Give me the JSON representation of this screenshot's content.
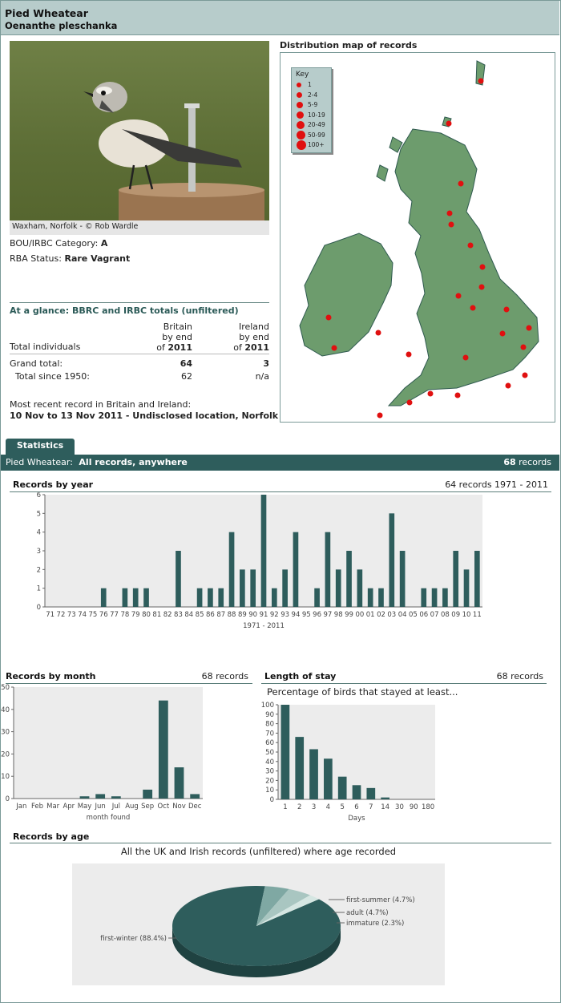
{
  "species": {
    "name": "Pied Wheatear",
    "latin": "Oenanthe pleschanka"
  },
  "photo": {
    "caption": "Waxham, Norfolk - © Rob Wardle"
  },
  "category": {
    "label": "BOU/IRBC Category:",
    "value": "A"
  },
  "rba": {
    "label": "RBA Status:",
    "value": "Rare Vagrant"
  },
  "glance": {
    "title": "At a glance: BBRC and IRBC totals (unfiltered)",
    "col_britain": [
      "Britain",
      "by end",
      "of "
    ],
    "col_ireland": [
      "Ireland",
      "by end",
      "of "
    ],
    "year": "2011",
    "total_individuals": "Total individuals",
    "grand_total_label": "Grand total:",
    "grand_britain": "64",
    "grand_ireland": "3",
    "since_label": "Total since 1950:",
    "since_britain": "62",
    "since_ireland": "n/a",
    "recent_label": "Most recent record in Britain and Ireland:",
    "recent_value": "10 Nov to 13 Nov 2011 - Undisclosed location, Norfolk"
  },
  "map": {
    "title": "Distribution map of records",
    "key_title": "Key",
    "key_items": [
      "1",
      "2-4",
      "5-9",
      "10-19",
      "20-49",
      "50-99",
      "100+"
    ],
    "dot_color": "#e01010",
    "land_color": "#6d9c6d",
    "sea_color": "#ffffff"
  },
  "stats": {
    "tab": "Statistics",
    "header_species": "Pied Wheatear:",
    "header_scope": "All records, anywhere",
    "header_count": "68",
    "header_count_suffix": " records"
  },
  "colors": {
    "accent": "#2e5d5c",
    "header_bg": "#b7cccb",
    "plot_bg": "#ececec"
  },
  "chart_data": [
    {
      "type": "bar",
      "title": "Records by year",
      "subtitle": "64 records 1971 - 2011",
      "xlabel": "1971 - 2011",
      "ylabel": "",
      "ylim": [
        0,
        6
      ],
      "categories": [
        "71",
        "72",
        "73",
        "74",
        "75",
        "76",
        "77",
        "78",
        "79",
        "80",
        "81",
        "82",
        "83",
        "84",
        "85",
        "86",
        "87",
        "88",
        "89",
        "90",
        "91",
        "92",
        "93",
        "94",
        "95",
        "96",
        "97",
        "98",
        "99",
        "00",
        "01",
        "02",
        "03",
        "04",
        "05",
        "06",
        "07",
        "08",
        "09",
        "10",
        "11"
      ],
      "values": [
        0,
        0,
        0,
        0,
        0,
        1,
        0,
        1,
        1,
        1,
        0,
        0,
        3,
        0,
        1,
        1,
        1,
        4,
        2,
        2,
        6,
        1,
        2,
        4,
        0,
        1,
        4,
        2,
        3,
        2,
        1,
        1,
        5,
        3,
        0,
        1,
        1,
        1,
        3,
        2,
        3
      ]
    },
    {
      "type": "bar",
      "title": "Records by month",
      "subtitle": "68 records",
      "xlabel": "month found",
      "ylabel": "",
      "ylim": [
        0,
        50
      ],
      "categories": [
        "Jan",
        "Feb",
        "Mar",
        "Apr",
        "May",
        "Jun",
        "Jul",
        "Aug",
        "Sep",
        "Oct",
        "Nov",
        "Dec"
      ],
      "values": [
        0,
        0,
        0,
        0,
        1,
        2,
        1,
        0,
        4,
        44,
        14,
        2
      ]
    },
    {
      "type": "bar",
      "title": "Length of stay",
      "subtitle": "68 records",
      "caption": "Percentage of birds that stayed at least...",
      "xlabel": "Days",
      "ylabel": "",
      "ylim": [
        0,
        100
      ],
      "categories": [
        "1",
        "2",
        "3",
        "4",
        "5",
        "6",
        "7",
        "14",
        "30",
        "90",
        "180"
      ],
      "values": [
        100,
        66,
        53,
        43,
        24,
        15,
        12,
        2,
        0,
        0,
        0
      ]
    },
    {
      "type": "pie",
      "title": "Records by age",
      "caption": "All the UK and Irish records (unfiltered) where age recorded",
      "labels": [
        "first-winter (88.4%)",
        "first-summer (4.7%)",
        "adult (4.7%)",
        "immature (2.3%)"
      ],
      "values": [
        88.4,
        4.7,
        4.7,
        2.3
      ],
      "colors": [
        "#2e5d5c",
        "#7fa8a3",
        "#a9c6c1",
        "#d5e6e2"
      ]
    }
  ]
}
